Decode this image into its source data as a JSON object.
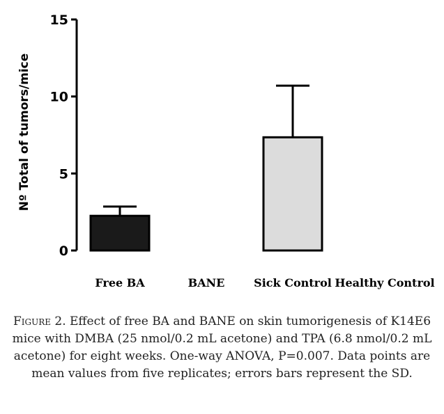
{
  "chart_data": {
    "type": "bar",
    "title": "",
    "xlabel": "",
    "ylabel": "Nº Total of tumors/mice",
    "categories": [
      "Free BA",
      "BANE",
      "Sick Control",
      "Healthy Control"
    ],
    "values": [
      2.25,
      0,
      7.35,
      0
    ],
    "errors": [
      0.6,
      0,
      3.35,
      0
    ],
    "ylim": [
      0,
      15
    ],
    "yticks": [
      "0",
      "5",
      "10",
      "15"
    ],
    "grid": false,
    "legend": "none",
    "bar_colors": [
      "#1a1a1a",
      "#1a1a1a",
      "#dcdcdc",
      "#dcdcdc"
    ]
  },
  "caption": {
    "label": "Figure 2.",
    "text": "Effect of free BA and BANE on skin tumorigenesis of K14E6 mice with DMBA (25 nmol/0.2 mL acetone) and TPA (6.8 nmol/0.2 mL acetone) for eight weeks. One-way ANOVA, P=0.007. Data points are mean values from five replicates; errors bars represent the SD."
  }
}
